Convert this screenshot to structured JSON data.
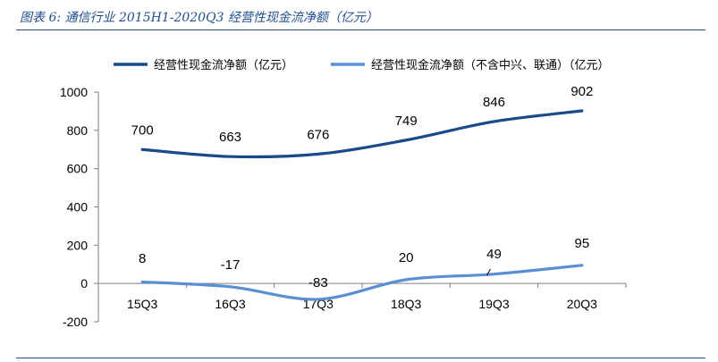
{
  "caption": "图表 6:  通信行业 2015H1-2020Q3 经营性现金流净额（亿元）",
  "chart_data": {
    "type": "line",
    "title": "",
    "xlabel": "",
    "ylabel": "",
    "categories": [
      "15Q3",
      "16Q3",
      "17Q3",
      "18Q3",
      "19Q3",
      "20Q3"
    ],
    "ylim": [
      -200,
      1000
    ],
    "yticks": [
      -200,
      0,
      200,
      400,
      600,
      800,
      1000
    ],
    "grid": false,
    "legend_position": "top",
    "series": [
      {
        "name": "经营性现金流净额（亿元）",
        "values": [
          700,
          663,
          676,
          749,
          846,
          902
        ],
        "color": "#1a4a8a",
        "labels": [
          "700",
          "663",
          "676",
          "749",
          "846",
          "902"
        ]
      },
      {
        "name": "经营性现金流净额（不含中兴、联通）（亿元）",
        "values": [
          8,
          -17,
          -83,
          20,
          49,
          95
        ],
        "color": "#5b8fd4",
        "labels": [
          "8",
          "-17",
          "-83",
          "20",
          "49",
          "95"
        ]
      }
    ]
  }
}
